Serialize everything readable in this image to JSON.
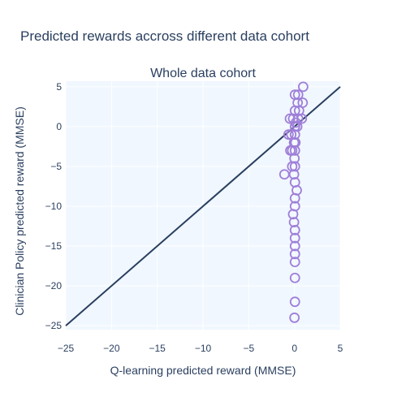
{
  "chart_data": {
    "type": "scatter",
    "title": "Predicted rewards accross different data cohort",
    "subtitle": "Whole data cohort",
    "xlabel": "Q-learning predicted reward (MMSE)",
    "ylabel": "Clinician Policy predicted reward (MMSE)",
    "xlim": [
      -25,
      5
    ],
    "ylim": [
      -25.5,
      5.7
    ],
    "xticks": [
      -25,
      -20,
      -15,
      -10,
      -5,
      0,
      5
    ],
    "yticks": [
      -25,
      -20,
      -15,
      -10,
      -5,
      0,
      5
    ],
    "grid": true,
    "plot_background": "#f0f7ff",
    "colors": {
      "marker_edge": "#9f7fd8",
      "line": "#2a3f5f",
      "text": "#2a3f5f"
    },
    "reference_line": {
      "from": [
        -25,
        -25
      ],
      "to": [
        5,
        5
      ]
    },
    "points": [
      {
        "x": 0.95,
        "y": 5
      },
      {
        "x": 0.4,
        "y": 4
      },
      {
        "x": 0.05,
        "y": 4
      },
      {
        "x": 0.9,
        "y": 3
      },
      {
        "x": 0.35,
        "y": 3
      },
      {
        "x": 0.05,
        "y": 2
      },
      {
        "x": 0.5,
        "y": 2
      },
      {
        "x": -0.15,
        "y": 1
      },
      {
        "x": -0.5,
        "y": 1
      },
      {
        "x": 0.4,
        "y": 1
      },
      {
        "x": 0.8,
        "y": 1
      },
      {
        "x": 0.15,
        "y": 0.5
      },
      {
        "x": 0.05,
        "y": 0
      },
      {
        "x": 0.3,
        "y": 0
      },
      {
        "x": -0.35,
        "y": -1
      },
      {
        "x": -0.65,
        "y": -1
      },
      {
        "x": 0.05,
        "y": -1
      },
      {
        "x": -0.05,
        "y": -2
      },
      {
        "x": 0.1,
        "y": -2
      },
      {
        "x": -0.25,
        "y": -3
      },
      {
        "x": -0.45,
        "y": -3
      },
      {
        "x": 0.05,
        "y": -3
      },
      {
        "x": 0.0,
        "y": -4
      },
      {
        "x": 0.05,
        "y": -5
      },
      {
        "x": -0.25,
        "y": -5
      },
      {
        "x": -1.1,
        "y": -6
      },
      {
        "x": -0.05,
        "y": -6
      },
      {
        "x": 0.05,
        "y": -7
      },
      {
        "x": 0.25,
        "y": -8
      },
      {
        "x": 0.05,
        "y": -9
      },
      {
        "x": 0.05,
        "y": -10
      },
      {
        "x": -0.15,
        "y": -11
      },
      {
        "x": -0.05,
        "y": -12
      },
      {
        "x": 0.05,
        "y": -13
      },
      {
        "x": 0.05,
        "y": -14
      },
      {
        "x": 0.05,
        "y": -15
      },
      {
        "x": 0.05,
        "y": -16
      },
      {
        "x": 0.05,
        "y": -17
      },
      {
        "x": 0.05,
        "y": -19
      },
      {
        "x": 0.05,
        "y": -22
      },
      {
        "x": 0.0,
        "y": -24
      }
    ]
  }
}
